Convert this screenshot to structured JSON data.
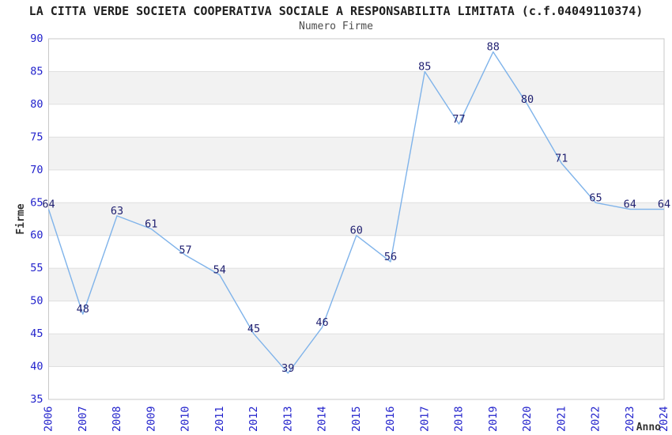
{
  "header": {
    "title": "LA CITTA VERDE SOCIETA COOPERATIVA SOCIALE A RESPONSABILITA LIMITATA (c.f.04049110374)",
    "subtitle": "Numero Firme"
  },
  "chart_data": {
    "type": "line",
    "title": "Numero Firme",
    "x": [
      2006,
      2007,
      2008,
      2009,
      2010,
      2011,
      2012,
      2013,
      2014,
      2015,
      2016,
      2017,
      2018,
      2019,
      2020,
      2021,
      2022,
      2023,
      2024
    ],
    "series": [
      {
        "name": "Numero Firme",
        "values": [
          64,
          48,
          63,
          61,
          57,
          54,
          45,
          39,
          46,
          60,
          56,
          85,
          77,
          88,
          80,
          71,
          65,
          64,
          64
        ]
      }
    ],
    "xlabel": "Anno",
    "ylabel": "Firme",
    "ylim": [
      35,
      90
    ],
    "ytick_step": 5,
    "grid": "horizontal",
    "banded_background": true,
    "legend": "none",
    "data_labels": true,
    "colors": {
      "line": "#7fb3ea",
      "tick_label": "#2222cc",
      "data_label": "#1f1f70",
      "band_fill": "#f2f2f2",
      "gridline": "#e0e0e0",
      "plot_border": "#c8c8c8",
      "axis_title": "#333333",
      "title": "#1f1f1f",
      "subtitle": "#4d4d4d",
      "background": "#ffffff"
    }
  }
}
